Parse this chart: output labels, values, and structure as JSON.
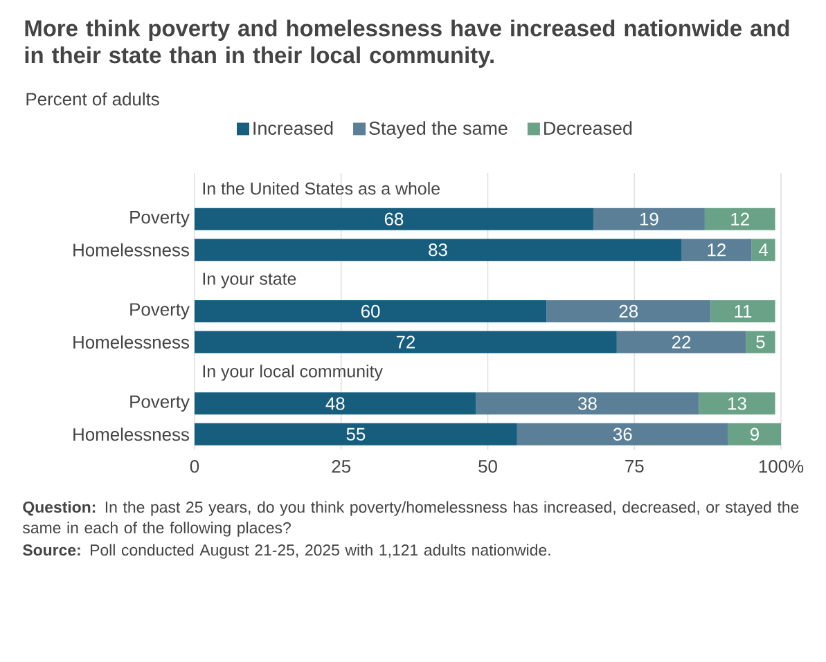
{
  "chart_data": {
    "type": "bar",
    "orientation": "horizontal",
    "stacked": true,
    "title": "More think poverty and homelessness have increased nationwide and in their state than in their local community.",
    "subtitle": "Percent of adults",
    "categories": [
      null,
      "Poverty",
      "Homelessness",
      null,
      "Poverty",
      "Homelessness",
      null,
      "Poverty",
      "Homelessness"
    ],
    "series": [
      {
        "name": "Increased",
        "color": "#175e7e",
        "values": [
          null,
          68,
          83,
          null,
          60,
          72,
          null,
          48,
          55
        ]
      },
      {
        "name": "Stayed the same",
        "color": "#5a7f96",
        "values": [
          null,
          19,
          12,
          null,
          28,
          22,
          null,
          38,
          36
        ]
      },
      {
        "name": "Decreased",
        "color": "#6aa287",
        "values": [
          null,
          12,
          4,
          null,
          11,
          5,
          null,
          13,
          9
        ]
      }
    ],
    "xlim": [
      0,
      100
    ],
    "xticks": [
      0,
      25,
      50,
      75,
      {
        "value": 100,
        "label": "100%"
      }
    ],
    "grid": "x",
    "legend": "top",
    "data_labels": true,
    "annotations": [
      "In the United States as a whole",
      "In your state",
      "In your local community",
      "**Question:** In the past 25 years, do you think poverty/homelessness has increased, decreased, or stayed the same in each of the following places?",
      "**Source:** Poll conducted August 21-25, 2025 with 1,121 adults nationwide."
    ]
  }
}
